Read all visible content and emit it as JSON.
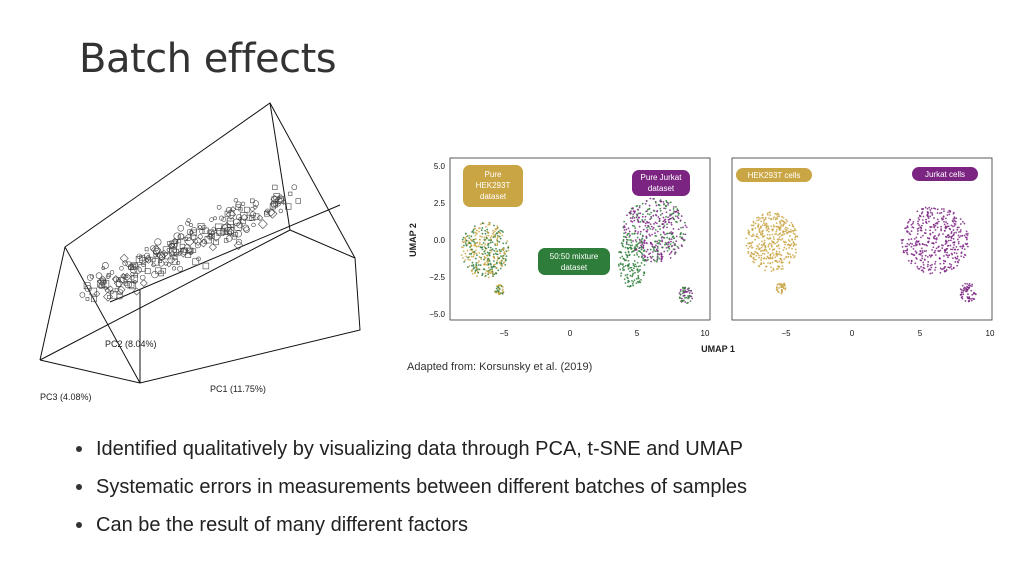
{
  "title": "Batch effects",
  "pca": {
    "pc1_label": "PC1 (11.75%)",
    "pc2_label": "PC2 (8.04%)",
    "pc3_label": "PC3 (4.08%)"
  },
  "umap": {
    "ylabel": "UMAP 2",
    "xlabel": "UMAP 1",
    "yticks": [
      "5.0",
      "2.5",
      "0.0",
      "−2.5",
      "−5.0"
    ],
    "xticks": [
      "−5",
      "0",
      "5",
      "10"
    ],
    "left_labels": {
      "pure_hek_1": "Pure",
      "pure_hek_2": "HEK293T",
      "pure_hek_3": "dataset",
      "pure_jurkat_1": "Pure Jurkat",
      "pure_jurkat_2": "dataset",
      "mix_1": "50:50 mixture",
      "mix_2": "dataset"
    },
    "right_labels": {
      "hek": "HEK293T cells",
      "jurkat": "Jurkat cells"
    },
    "colors": {
      "hek": "#c9a543",
      "jurkat": "#7b2482",
      "mix": "#2e7d3a"
    }
  },
  "caption": "Adapted from: Korsunsky et al. (2019)",
  "bullets": [
    "Identified qualitatively by visualizing data through PCA, t-SNE and UMAP",
    "Systematic errors in measurements between different batches of samples",
    "Can be the result of many different factors"
  ]
}
